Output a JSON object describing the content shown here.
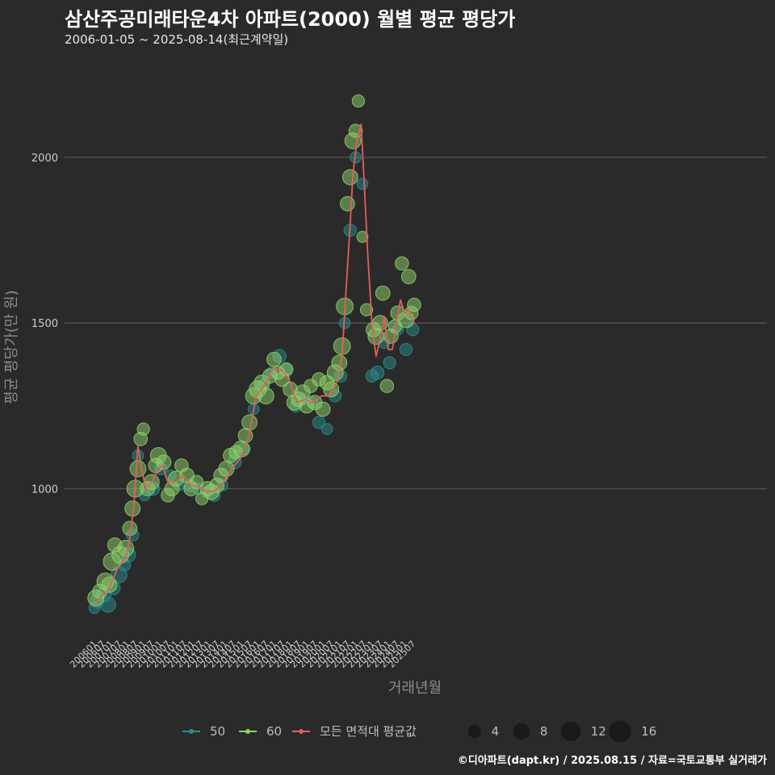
{
  "header": {
    "title": "삼산주공미래타운4차 아파트(2000) 월별 평균 평당가",
    "subtitle": "2006-01-05 ~ 2025-08-14(최근계약일)"
  },
  "footer": {
    "credit": "©디아파트(dapt.kr) / 2025.08.15 / 자료=국토교통부 실거래가"
  },
  "colors": {
    "background": "#2b2a2b",
    "grid": "#5a5a5a",
    "series_50": "#2a8c8c",
    "series_60": "#8fd26b",
    "series_avg": "#e0605c"
  },
  "chart_data": {
    "type": "scatter",
    "xlabel": "거래년월",
    "ylabel": "평균 평당가(만 원)",
    "x_range": [
      "2006-01",
      "2025-08"
    ],
    "ylim": [
      550,
      2280
    ],
    "yticks": [
      1000,
      1500,
      2000
    ],
    "grid": true,
    "xticks": [
      "200601",
      "200607",
      "200701",
      "200707",
      "200801",
      "200807",
      "200901",
      "200907",
      "201001",
      "201007",
      "201101",
      "201107",
      "201201",
      "201207",
      "201301",
      "201307",
      "201401",
      "201407",
      "201501",
      "201507",
      "201601",
      "201607",
      "201701",
      "201707",
      "201801",
      "201807",
      "201901",
      "201907",
      "202001",
      "202007",
      "202101",
      "202107",
      "202201",
      "202207",
      "202301",
      "202307",
      "202401",
      "202407",
      "202501",
      "202507"
    ],
    "legend": {
      "position": "bottom",
      "series": [
        {
          "name": "50",
          "color": "#2a8c8c"
        },
        {
          "name": "60",
          "color": "#8fd26b"
        },
        {
          "name": "모든 면적대 평균값",
          "color": "#e0605c"
        }
      ],
      "sizes": [
        4,
        8,
        12,
        16
      ]
    },
    "series": [
      {
        "name": "모든 면적대 평균값",
        "kind": "line",
        "points": [
          [
            "2006-01",
            650
          ],
          [
            "2006-07",
            680
          ],
          [
            "2006-12",
            700
          ],
          [
            "2007-06",
            760
          ],
          [
            "2007-12",
            790
          ],
          [
            "2008-03",
            850
          ],
          [
            "2008-06",
            950
          ],
          [
            "2008-09",
            1130
          ],
          [
            "2008-12",
            1050
          ],
          [
            "2009-03",
            1000
          ],
          [
            "2009-07",
            1020
          ],
          [
            "2009-12",
            1060
          ],
          [
            "2010-03",
            1070
          ],
          [
            "2010-07",
            1020
          ],
          [
            "2010-12",
            1020
          ],
          [
            "2011-06",
            1040
          ],
          [
            "2011-12",
            1010
          ],
          [
            "2012-06",
            1005
          ],
          [
            "2012-12",
            990
          ],
          [
            "2013-06",
            995
          ],
          [
            "2013-12",
            1020
          ],
          [
            "2014-06",
            1060
          ],
          [
            "2014-12",
            1090
          ],
          [
            "2015-06",
            1150
          ],
          [
            "2015-12",
            1280
          ],
          [
            "2016-06",
            1310
          ],
          [
            "2016-12",
            1360
          ],
          [
            "2017-06",
            1360
          ],
          [
            "2017-12",
            1330
          ],
          [
            "2018-06",
            1260
          ],
          [
            "2018-12",
            1270
          ],
          [
            "2019-06",
            1260
          ],
          [
            "2019-12",
            1280
          ],
          [
            "2020-06",
            1280
          ],
          [
            "2020-12",
            1330
          ],
          [
            "2021-03",
            1400
          ],
          [
            "2021-06",
            1600
          ],
          [
            "2021-09",
            1800
          ],
          [
            "2021-11",
            1950
          ],
          [
            "2022-02",
            2050
          ],
          [
            "2022-05",
            2100
          ],
          [
            "2022-07",
            1950
          ],
          [
            "2022-10",
            1700
          ],
          [
            "2023-01",
            1500
          ],
          [
            "2023-04",
            1400
          ],
          [
            "2023-07",
            1450
          ],
          [
            "2023-10",
            1520
          ],
          [
            "2024-01",
            1420
          ],
          [
            "2024-04",
            1420
          ],
          [
            "2024-07",
            1500
          ],
          [
            "2024-10",
            1570
          ],
          [
            "2025-01",
            1530
          ],
          [
            "2025-04",
            1540
          ],
          [
            "2025-07",
            1510
          ],
          [
            "2025-08",
            1500
          ]
        ]
      },
      {
        "name": "50",
        "kind": "bubble",
        "points": [
          [
            "2006-01",
            640,
            3
          ],
          [
            "2006-03",
            660,
            5
          ],
          [
            "2006-08",
            680,
            6
          ],
          [
            "2006-11",
            650,
            7
          ],
          [
            "2007-03",
            700,
            5
          ],
          [
            "2007-07",
            740,
            8
          ],
          [
            "2007-11",
            770,
            4
          ],
          [
            "2008-02",
            800,
            6
          ],
          [
            "2008-05",
            860,
            4
          ],
          [
            "2008-09",
            1100,
            3
          ],
          [
            "2009-02",
            980,
            3
          ],
          [
            "2009-08",
            1000,
            5
          ],
          [
            "2010-02",
            1060,
            4
          ],
          [
            "2010-09",
            1040,
            3
          ],
          [
            "2011-03",
            1010,
            3
          ],
          [
            "2011-11",
            1010,
            4
          ],
          [
            "2012-05",
            1000,
            3
          ],
          [
            "2012-11",
            990,
            3
          ],
          [
            "2013-05",
            980,
            4
          ],
          [
            "2013-11",
            1010,
            3
          ],
          [
            "2014-08",
            1080,
            5
          ],
          [
            "2015-03",
            1120,
            4
          ],
          [
            "2015-10",
            1240,
            3
          ],
          [
            "2016-05",
            1310,
            4
          ],
          [
            "2016-11",
            1350,
            3
          ],
          [
            "2017-05",
            1400,
            5
          ],
          [
            "2017-10",
            1360,
            3
          ],
          [
            "2018-05",
            1250,
            4
          ],
          [
            "2018-11",
            1270,
            3
          ],
          [
            "2019-05",
            1260,
            3
          ],
          [
            "2019-10",
            1200,
            4
          ],
          [
            "2020-04",
            1180,
            3
          ],
          [
            "2020-10",
            1280,
            4
          ],
          [
            "2021-02",
            1340,
            4
          ],
          [
            "2021-05",
            1500,
            3
          ],
          [
            "2021-09",
            1780,
            4
          ],
          [
            "2022-01",
            2000,
            3
          ],
          [
            "2022-06",
            1920,
            3
          ],
          [
            "2023-01",
            1340,
            4
          ],
          [
            "2023-05",
            1350,
            5
          ],
          [
            "2023-10",
            1440,
            3
          ],
          [
            "2024-02",
            1380,
            4
          ],
          [
            "2024-08",
            1480,
            3
          ],
          [
            "2025-02",
            1420,
            4
          ],
          [
            "2025-07",
            1480,
            4
          ]
        ]
      },
      {
        "name": "60",
        "kind": "bubble",
        "points": [
          [
            "2006-02",
            670,
            8
          ],
          [
            "2006-05",
            690,
            6
          ],
          [
            "2006-09",
            720,
            9
          ],
          [
            "2006-12",
            710,
            7
          ],
          [
            "2007-02",
            780,
            10
          ],
          [
            "2007-04",
            830,
            6
          ],
          [
            "2007-08",
            800,
            9
          ],
          [
            "2007-12",
            820,
            8
          ],
          [
            "2008-03",
            880,
            6
          ],
          [
            "2008-05",
            940,
            7
          ],
          [
            "2008-07",
            1000,
            9
          ],
          [
            "2008-09",
            1060,
            8
          ],
          [
            "2008-11",
            1150,
            5
          ],
          [
            "2009-01",
            1180,
            4
          ],
          [
            "2009-04",
            1000,
            6
          ],
          [
            "2009-07",
            1020,
            7
          ],
          [
            "2009-10",
            1070,
            6
          ],
          [
            "2009-12",
            1100,
            8
          ],
          [
            "2010-04",
            1080,
            6
          ],
          [
            "2010-07",
            980,
            5
          ],
          [
            "2010-10",
            1000,
            6
          ],
          [
            "2011-01",
            1030,
            7
          ],
          [
            "2011-05",
            1070,
            5
          ],
          [
            "2011-09",
            1040,
            6
          ],
          [
            "2011-12",
            1000,
            6
          ],
          [
            "2012-04",
            1020,
            5
          ],
          [
            "2012-08",
            970,
            4
          ],
          [
            "2012-12",
            1000,
            6
          ],
          [
            "2013-03",
            990,
            7
          ],
          [
            "2013-07",
            1010,
            6
          ],
          [
            "2013-10",
            1040,
            6
          ],
          [
            "2014-02",
            1060,
            7
          ],
          [
            "2014-05",
            1100,
            6
          ],
          [
            "2014-09",
            1110,
            5
          ],
          [
            "2015-01",
            1120,
            8
          ],
          [
            "2015-04",
            1160,
            6
          ],
          [
            "2015-07",
            1200,
            7
          ],
          [
            "2015-10",
            1280,
            8
          ],
          [
            "2016-01",
            1300,
            9
          ],
          [
            "2016-04",
            1320,
            7
          ],
          [
            "2016-07",
            1280,
            8
          ],
          [
            "2016-10",
            1340,
            6
          ],
          [
            "2017-01",
            1390,
            6
          ],
          [
            "2017-04",
            1350,
            5
          ],
          [
            "2017-07",
            1330,
            6
          ],
          [
            "2017-10",
            1360,
            5
          ],
          [
            "2018-01",
            1300,
            6
          ],
          [
            "2018-04",
            1260,
            7
          ],
          [
            "2018-07",
            1270,
            6
          ],
          [
            "2018-10",
            1290,
            7
          ],
          [
            "2019-01",
            1250,
            6
          ],
          [
            "2019-04",
            1310,
            5
          ],
          [
            "2019-07",
            1260,
            6
          ],
          [
            "2019-10",
            1330,
            5
          ],
          [
            "2020-01",
            1240,
            6
          ],
          [
            "2020-04",
            1320,
            6
          ],
          [
            "2020-07",
            1300,
            7
          ],
          [
            "2020-10",
            1350,
            8
          ],
          [
            "2021-01",
            1380,
            7
          ],
          [
            "2021-03",
            1430,
            9
          ],
          [
            "2021-05",
            1550,
            9
          ],
          [
            "2021-07",
            1860,
            6
          ],
          [
            "2021-09",
            1940,
            7
          ],
          [
            "2021-11",
            2050,
            8
          ],
          [
            "2022-01",
            2080,
            5
          ],
          [
            "2022-03",
            2170,
            4
          ],
          [
            "2022-06",
            1760,
            3
          ],
          [
            "2022-09",
            1540,
            4
          ],
          [
            "2023-02",
            1480,
            6
          ],
          [
            "2023-04",
            1460,
            8
          ],
          [
            "2023-07",
            1500,
            7
          ],
          [
            "2023-09",
            1590,
            6
          ],
          [
            "2023-12",
            1310,
            5
          ],
          [
            "2024-03",
            1460,
            6
          ],
          [
            "2024-06",
            1490,
            5
          ],
          [
            "2024-08",
            1530,
            6
          ],
          [
            "2024-11",
            1680,
            5
          ],
          [
            "2025-02",
            1510,
            8
          ],
          [
            "2025-04",
            1640,
            6
          ],
          [
            "2025-06",
            1530,
            5
          ],
          [
            "2025-08",
            1555,
            5
          ]
        ]
      }
    ]
  }
}
